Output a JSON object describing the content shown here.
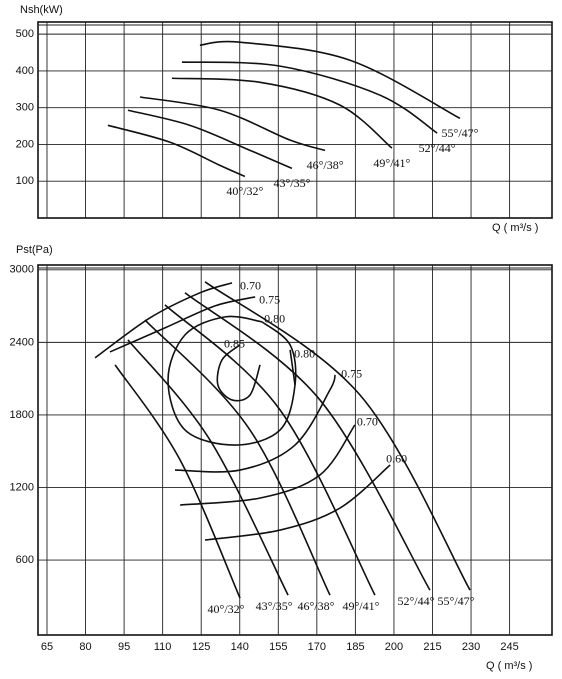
{
  "chart_data": [
    {
      "type": "line",
      "y_label": "Nsh(kW)",
      "x_label": "Q ( m³/s )",
      "xlim": [
        61.5,
        261.5
      ],
      "ylim": [
        0,
        533
      ],
      "xticks": [
        65,
        80,
        95,
        110,
        125,
        140,
        155,
        170,
        185,
        200,
        215,
        230,
        245
      ],
      "yticks": [
        100,
        200,
        300,
        400,
        500
      ],
      "grid": true,
      "series": [
        {
          "name": "40°/32°",
          "color": "#111111",
          "x": [
            88.7,
            112.9,
            132.3,
            142
          ],
          "values": [
            252,
            206,
            143,
            113
          ]
        },
        {
          "name": "43°/35°",
          "color": "#111111",
          "x": [
            96.5,
            120.6,
            144,
            160.3
          ],
          "values": [
            293,
            252,
            184,
            135
          ]
        },
        {
          "name": "46°/38°",
          "color": "#111111",
          "x": [
            101.2,
            132.3,
            159.5,
            173.2
          ],
          "values": [
            329,
            293,
            212,
            184
          ]
        },
        {
          "name": "49°/41°",
          "color": "#111111",
          "x": [
            113.6,
            147.9,
            179,
            199.2
          ],
          "values": [
            380,
            369,
            307,
            190
          ]
        },
        {
          "name": "52°/44°",
          "color": "#111111",
          "x": [
            117.5,
            155.7,
            194.6,
            216.8
          ],
          "values": [
            424,
            413,
            334,
            231
          ]
        },
        {
          "name": "55°/47°",
          "color": "#111111",
          "x": [
            124.5,
            140.1,
            182.9,
            225.7
          ],
          "values": [
            470,
            478,
            429,
            271
          ]
        }
      ]
    },
    {
      "type": "line",
      "y_label": "Pst(Pa)",
      "x_label": "Q ( m³/s )",
      "xlim": [
        61.5,
        261.5
      ],
      "ylim": [
        -20,
        3040
      ],
      "xticks": [
        65,
        80,
        95,
        110,
        125,
        140,
        155,
        170,
        185,
        200,
        215,
        230,
        245
      ],
      "yticks": [
        600,
        1200,
        1800,
        2400,
        3000
      ],
      "grid": true,
      "series": [
        {
          "name": "40°/32°",
          "color": "#111111",
          "x": [
            91.5,
            116.8,
            140.1
          ],
          "values": [
            2214,
            1427,
            285
          ]
        },
        {
          "name": "43°/35°",
          "color": "#111111",
          "x": [
            96.5,
            128.4,
            158.8
          ],
          "values": [
            2421,
            1593,
            310
          ]
        },
        {
          "name": "46°/38°",
          "color": "#111111",
          "x": [
            103.1,
            144,
            175.1
          ],
          "values": [
            2586,
            1675,
            310
          ]
        },
        {
          "name": "49°/41°",
          "color": "#111111",
          "x": [
            110.9,
            155.7,
            192.6
          ],
          "values": [
            2710,
            1841,
            310
          ]
        },
        {
          "name": "52°/44°",
          "color": "#111111",
          "x": [
            118.7,
            171.2,
            214
          ],
          "values": [
            2810,
            1924,
            351
          ]
        },
        {
          "name": "55°/47°",
          "color": "#111111",
          "x": [
            126.5,
            186.8,
            229.6
          ],
          "values": [
            2901,
            1965,
            351
          ]
        }
      ],
      "contours": [
        {
          "name": "0.70",
          "x": [
            83.7,
            105.1,
            124.5,
            137
          ],
          "values": [
            2272,
            2603,
            2810,
            2892
          ]
        },
        {
          "name": "0.75",
          "x": [
            89.5,
            110.9,
            130.4,
            146
          ],
          "values": [
            2321,
            2520,
            2702,
            2776
          ]
        },
        {
          "name": "0.80",
          "x": [
            148.7,
            159.6,
            161.5,
            155.7,
            138.2,
            118.7,
            112.1,
            118.7,
            134.3,
            148.7
          ],
          "values": [
            2570,
            2379,
            2048,
            1676,
            1551,
            1676,
            2089,
            2462,
            2611,
            2570
          ]
        },
        {
          "name": "0.85",
          "x": [
            147.9,
            144,
            137,
            131.5,
            133.1,
            140.1
          ],
          "values": [
            2214,
            1965,
            1924,
            2048,
            2255,
            2379
          ]
        },
        {
          "name": "0.80",
          "x": [
            161.5,
            159.6
          ],
          "values": [
            2048,
            2338
          ]
        },
        {
          "name": "0.75",
          "x": [
            114.8,
            140.1,
            161.5,
            175.1,
            177.1
          ],
          "values": [
            1344,
            1344,
            1551,
            2007,
            2131
          ]
        },
        {
          "name": "0.70",
          "x": [
            116.8,
            148,
            171.2,
            184.8
          ],
          "values": [
            1055,
            1113,
            1303,
            1717
          ]
        },
        {
          "name": "0.60",
          "x": [
            126.5,
            155.7,
            179,
            198.5
          ],
          "values": [
            765,
            848,
            1030,
            1386
          ]
        }
      ]
    }
  ]
}
